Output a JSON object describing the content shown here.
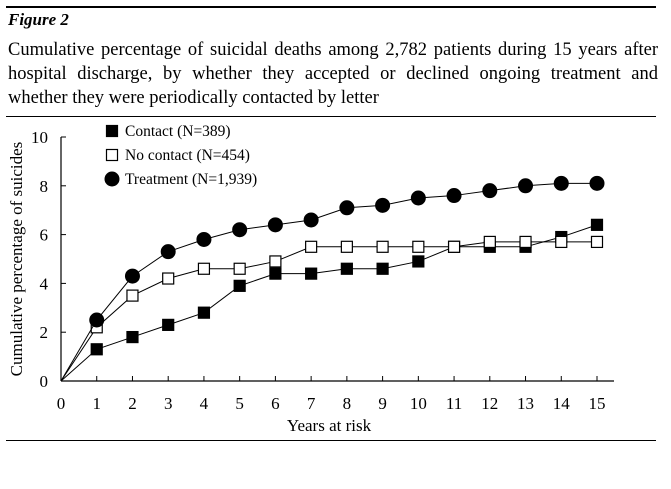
{
  "figure_label": "Figure 2",
  "caption": "Cumulative percentage of suicidal deaths among 2,782 patients during 15 years after hospital discharge, by whether they accepted or declined ongoing treatment and whether they were periodically contacted by letter",
  "chart_data": {
    "type": "line",
    "title": "",
    "xlabel": "Years at risk",
    "ylabel": "Cumulative percentage of suicides",
    "xlim": [
      0,
      15
    ],
    "ylim": [
      0,
      10
    ],
    "x_ticks": [
      0,
      1,
      2,
      3,
      4,
      5,
      6,
      7,
      8,
      9,
      10,
      11,
      12,
      13,
      14,
      15
    ],
    "y_ticks": [
      0,
      2,
      4,
      6,
      8,
      10
    ],
    "x_tick_labels": [
      "0",
      "1",
      "2",
      "3",
      "4",
      "5",
      "6",
      "7",
      "8",
      "9",
      "10",
      "11",
      "12",
      "13",
      "14",
      "15"
    ],
    "y_tick_labels": [
      "0",
      "2",
      "4",
      "6",
      "8",
      "10"
    ],
    "grid": false,
    "legend_position": "top-left",
    "x": [
      0,
      1,
      2,
      3,
      4,
      5,
      6,
      7,
      8,
      9,
      10,
      11,
      12,
      13,
      14,
      15
    ],
    "series": [
      {
        "name": "Contact (N=389)",
        "marker": "filled-square",
        "values": [
          0,
          1.3,
          1.8,
          2.3,
          2.8,
          3.9,
          4.4,
          4.4,
          4.6,
          4.6,
          4.9,
          5.5,
          5.5,
          5.5,
          5.9,
          6.4
        ]
      },
      {
        "name": "No contact (N=454)",
        "marker": "open-square",
        "values": [
          0,
          2.2,
          3.5,
          4.2,
          4.6,
          4.6,
          4.9,
          5.5,
          5.5,
          5.5,
          5.5,
          5.5,
          5.7,
          5.7,
          5.7,
          5.7
        ]
      },
      {
        "name": "Treatment (N=1,939)",
        "marker": "filled-circle",
        "values": [
          0,
          2.5,
          4.3,
          5.3,
          5.8,
          6.2,
          6.4,
          6.6,
          7.1,
          7.2,
          7.5,
          7.6,
          7.8,
          8.0,
          8.1,
          8.1
        ]
      }
    ]
  }
}
